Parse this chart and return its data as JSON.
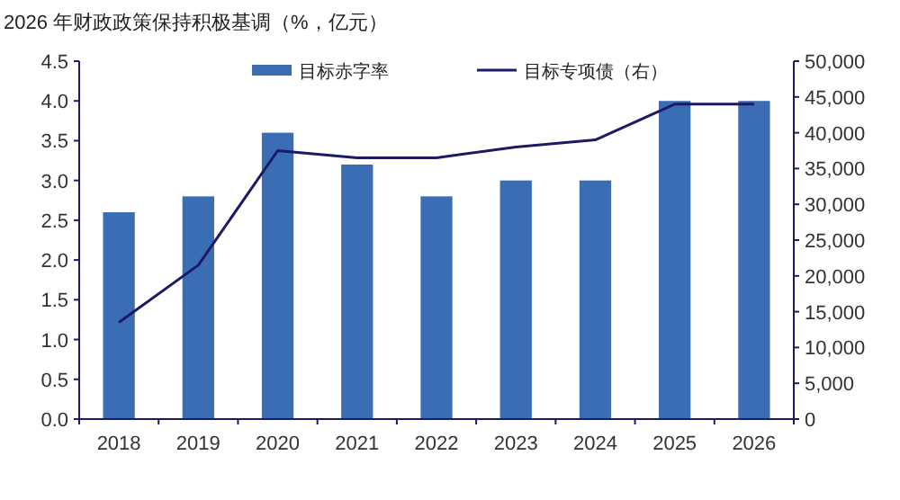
{
  "chart_data": {
    "type": "bar",
    "title": "2026 年财政政策保持积极基调（%，亿元）",
    "categories": [
      "2018",
      "2019",
      "2020",
      "2021",
      "2022",
      "2023",
      "2024",
      "2025",
      "2026"
    ],
    "series": [
      {
        "name": "目标赤字率",
        "color": "#3b6db4",
        "values": [
          2.6,
          2.8,
          3.6,
          3.2,
          2.8,
          3.0,
          3.0,
          4.0,
          4.0
        ]
      },
      {
        "name": "目标专项债（右）",
        "type": "line",
        "axis": "y2",
        "color": "#1c1a66",
        "values": [
          13500,
          21500,
          37500,
          36500,
          36500,
          38000,
          39000,
          44000,
          44000
        ]
      }
    ],
    "ylim": [
      0,
      4.5
    ],
    "yticks": [
      {
        "value": 0,
        "label": "0.0"
      },
      0.5,
      {
        "value": 1,
        "label": "1.0"
      },
      1.5,
      {
        "value": 2,
        "label": "2.0"
      },
      2.5,
      {
        "value": 3,
        "label": "3.0"
      },
      3.5,
      {
        "value": 4,
        "label": "4.0"
      },
      4.5
    ],
    "y2lim": [
      0,
      50000
    ],
    "y2ticks": [
      0,
      {
        "value": 5000,
        "label": "5,000"
      },
      {
        "value": 10000,
        "label": "10,000"
      },
      {
        "value": 15000,
        "label": "15,000"
      },
      {
        "value": 20000,
        "label": "20,000"
      },
      {
        "value": 25000,
        "label": "25,000"
      },
      {
        "value": 30000,
        "label": "30,000"
      },
      {
        "value": 35000,
        "label": "35,000"
      },
      {
        "value": 40000,
        "label": "40,000"
      },
      {
        "value": 45000,
        "label": "45,000"
      },
      {
        "value": 50000,
        "label": "50,000"
      }
    ],
    "legend": "top",
    "grid": false
  }
}
